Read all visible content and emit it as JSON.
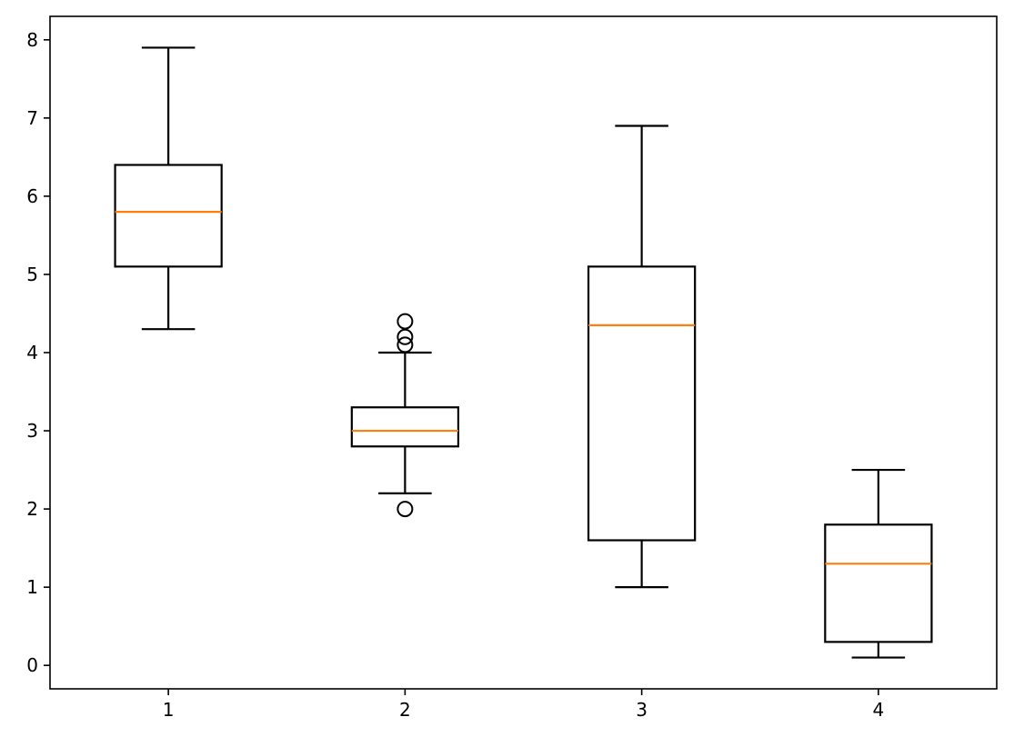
{
  "chart_data": {
    "type": "boxplot",
    "title": "",
    "xlabel": "",
    "ylabel": "",
    "ylim": [
      -0.3,
      8.3
    ],
    "categories": [
      "1",
      "2",
      "3",
      "4"
    ],
    "y_ticks": [
      "0",
      "1",
      "2",
      "3",
      "4",
      "5",
      "6",
      "7",
      "8"
    ],
    "y_tick_values": [
      0,
      1,
      2,
      3,
      4,
      5,
      6,
      7,
      8
    ],
    "grid": false,
    "boxes": [
      {
        "category": "1",
        "whisker_low": 4.3,
        "q1": 5.1,
        "median": 5.8,
        "q3": 6.4,
        "whisker_high": 7.9,
        "outliers": []
      },
      {
        "category": "2",
        "whisker_low": 2.2,
        "q1": 2.8,
        "median": 3.0,
        "q3": 3.3,
        "whisker_high": 4.0,
        "outliers": [
          2.0,
          4.1,
          4.2,
          4.4
        ]
      },
      {
        "category": "3",
        "whisker_low": 1.0,
        "q1": 1.6,
        "median": 4.35,
        "q3": 5.1,
        "whisker_high": 6.9,
        "outliers": []
      },
      {
        "category": "4",
        "whisker_low": 0.1,
        "q1": 0.3,
        "median": 1.3,
        "q3": 1.8,
        "whisker_high": 2.5,
        "outliers": []
      }
    ],
    "colors": {
      "box": "#000000",
      "median": "#ff7f0e",
      "whisker": "#000000",
      "outlier": "#000000",
      "axes": "#000000"
    }
  }
}
